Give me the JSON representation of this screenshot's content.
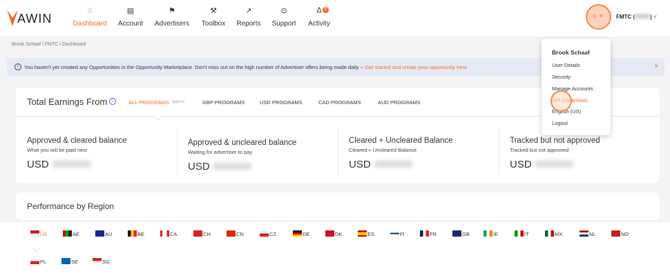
{
  "header": {
    "logo": "AWIN",
    "nav": [
      "Dashboard",
      "Account",
      "Advertisers",
      "Toolbox",
      "Reports",
      "Support",
      "Activity"
    ],
    "activity_badge": "0",
    "account_label": "FMTC (",
    "account_label_end": ")"
  },
  "breadcrumb": "Brook Schaaf / FMTC / Dashboard",
  "banner": {
    "message": "You haven't yet created any Opportunities in the Opportunity Marketplace. Don't miss out on the high number of Advertiser offers being made daily --",
    "link": "Get started and create your opportunity here"
  },
  "earnings": {
    "title": "Total Earnings From",
    "tabs": [
      "ALL PROGRAMS",
      "GBP PROGRAMS",
      "USD PROGRAMS",
      "CAD PROGRAMS",
      "AUD PROGRAMS"
    ],
    "tab_note": "approx",
    "cards": [
      {
        "title": "Approved & cleared balance",
        "subtitle": "What you will be paid next",
        "currency": "USD"
      },
      {
        "title": "Approved & uncleared balance",
        "subtitle": "Waiting for advertiser to pay",
        "currency": "USD"
      },
      {
        "title": "Cleared + Uncleared Balance",
        "subtitle": "Cleared + Uncleared Balance",
        "currency": "USD"
      },
      {
        "title": "Tracked but not approved",
        "subtitle": "Tracked but not approved",
        "currency": "USD"
      }
    ]
  },
  "performance": {
    "title": "Performance by Region",
    "regions": [
      "US",
      "AE",
      "AU",
      "BE",
      "CA",
      "CH",
      "CN",
      "CZ",
      "DE",
      "DK",
      "ES",
      "FI",
      "FR",
      "GB",
      "IE",
      "IT",
      "MX",
      "NL",
      "NO",
      "PL",
      "SE",
      "SG"
    ]
  },
  "user_menu": {
    "name": "Brook Schaaf",
    "items": [
      "User Details",
      "Security",
      "Manage Accounts",
      "API Credentials",
      "English (US)",
      "Logout"
    ]
  }
}
